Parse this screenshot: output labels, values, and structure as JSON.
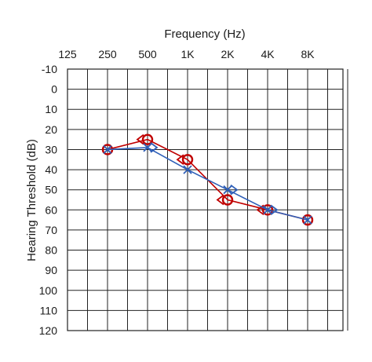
{
  "chart_data": {
    "type": "line",
    "title": "",
    "xlabel": "Frequency (Hz)",
    "ylabel": "Hearing Threshold (dB)",
    "x_tick_labels": [
      "125",
      "250",
      "500",
      "1K",
      "2K",
      "4K",
      "8K"
    ],
    "y_ticks": [
      -10,
      0,
      10,
      20,
      30,
      40,
      50,
      60,
      70,
      80,
      90,
      100,
      110,
      120
    ],
    "ylim": [
      -10,
      120
    ],
    "y_inverted": true,
    "grid": true,
    "series": [
      {
        "marker": "circle",
        "color": "#c00000",
        "x": [
          "250",
          "500",
          "1K",
          "2K",
          "4K",
          "8K"
        ],
        "values": [
          30,
          25,
          35,
          55,
          60,
          65
        ]
      },
      {
        "marker": "bracket-left",
        "color": "#c00000",
        "x": [
          "500",
          "1K",
          "2K",
          "4K"
        ],
        "values": [
          25,
          35,
          55,
          60
        ]
      },
      {
        "marker": "cross",
        "color": "#2e5fb8",
        "x": [
          "250",
          "500",
          "1K",
          "2K",
          "4K",
          "8K"
        ],
        "values": [
          30,
          29,
          40,
          50,
          60,
          65
        ]
      },
      {
        "marker": "bracket-right",
        "color": "#2e5fb8",
        "x": [
          "500",
          "2K",
          "4K"
        ],
        "values": [
          29,
          50,
          60
        ]
      }
    ]
  }
}
